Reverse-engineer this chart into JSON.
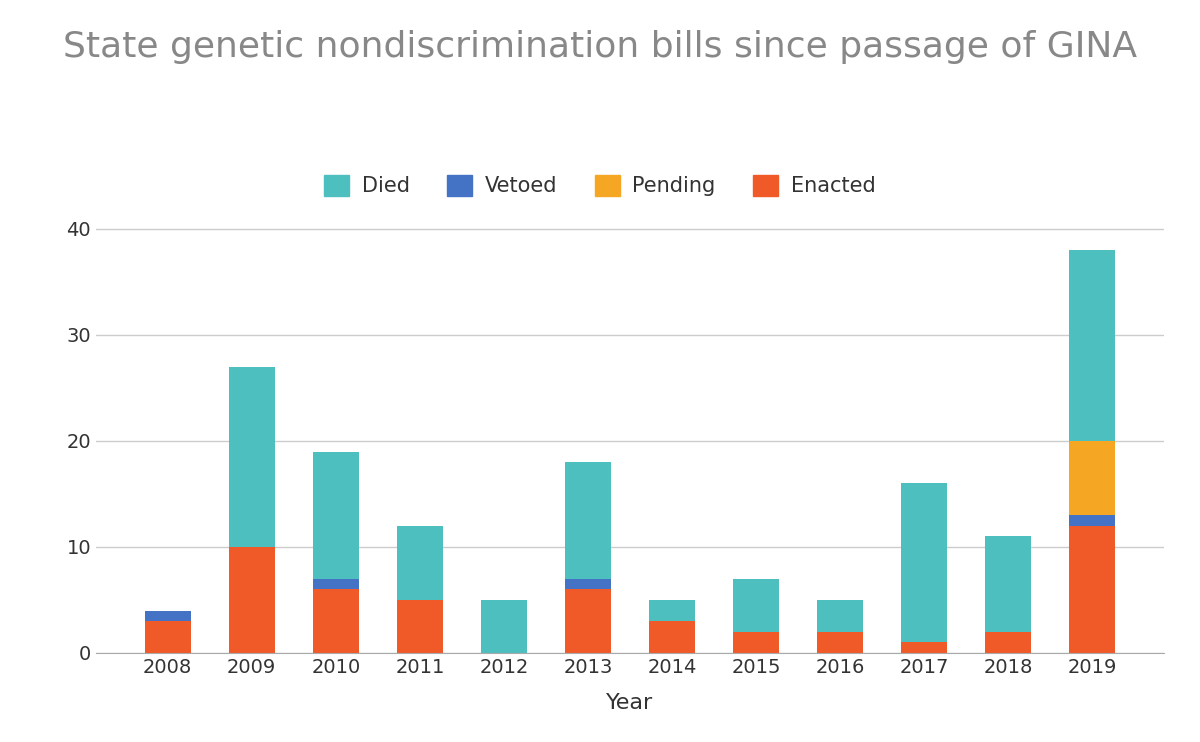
{
  "years": [
    "2008",
    "2009",
    "2010",
    "2011",
    "2012",
    "2013",
    "2014",
    "2015",
    "2016",
    "2017",
    "2018",
    "2019"
  ],
  "enacted": [
    3,
    10,
    6,
    5,
    0,
    6,
    3,
    2,
    2,
    1,
    2,
    12
  ],
  "vetoed": [
    1,
    0,
    1,
    0,
    0,
    1,
    0,
    0,
    0,
    0,
    0,
    1
  ],
  "pending": [
    0,
    0,
    0,
    0,
    0,
    0,
    0,
    0,
    0,
    0,
    0,
    7
  ],
  "died": [
    0,
    17,
    12,
    7,
    5,
    11,
    2,
    5,
    3,
    15,
    9,
    18
  ],
  "colors": {
    "enacted": "#f05a28",
    "vetoed": "#4472c4",
    "pending": "#f5a623",
    "died": "#4ebfbf"
  },
  "title": "State genetic nondiscrimination bills since passage of GINA",
  "xlabel": "Year",
  "ylim": [
    0,
    42
  ],
  "yticks": [
    0,
    10,
    20,
    30,
    40
  ],
  "title_fontsize": 26,
  "axis_label_fontsize": 16,
  "tick_fontsize": 14,
  "legend_fontsize": 15,
  "title_color": "#888888",
  "tick_color": "#333333",
  "background_color": "#ffffff",
  "grid_color": "#cccccc",
  "bar_width": 0.55
}
